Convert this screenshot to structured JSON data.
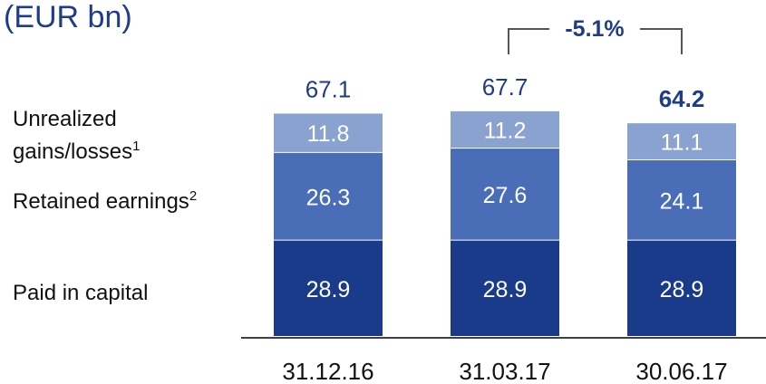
{
  "chart_data": {
    "type": "bar",
    "stacked": true,
    "unit_label": "(EUR bn)",
    "categories": [
      "31.12.16",
      "31.03.17",
      "30.06.17"
    ],
    "series": [
      {
        "name": "Paid in capital",
        "values": [
          28.9,
          28.9,
          28.9
        ],
        "color": "#1a3a8a"
      },
      {
        "name": "Retained earnings",
        "superscript": "2",
        "values": [
          26.3,
          27.6,
          24.1
        ],
        "color": "#4a6db8"
      },
      {
        "name": "Unrealized gains/losses",
        "name_line1": "Unrealized",
        "name_line2": "gains/losses",
        "superscript": "1",
        "values": [
          11.8,
          11.2,
          11.1
        ],
        "color": "#8aa2d0"
      }
    ],
    "totals": [
      "67.1",
      "67.7",
      "64.2"
    ],
    "totals_bold": [
      false,
      false,
      true
    ],
    "change": {
      "label": "-5.1%",
      "from": "31.03.17",
      "to": "30.06.17"
    },
    "legend": "left",
    "grid": false,
    "colors": {
      "text_dark": "#1f3c88",
      "label": "#111111",
      "value_on_bar": "#ffffff",
      "baseline": "#000000",
      "bracket": "#555555"
    }
  }
}
